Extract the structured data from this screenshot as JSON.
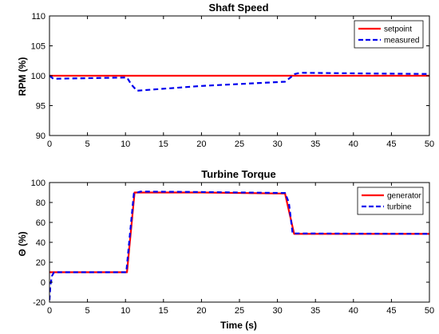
{
  "chart_data": [
    {
      "type": "line",
      "title": "Shaft Speed",
      "xlabel": "",
      "ylabel": "RPM (%)",
      "xlim": [
        0,
        50
      ],
      "ylim": [
        90,
        110
      ],
      "xticks": [
        0,
        5,
        10,
        15,
        20,
        25,
        30,
        35,
        40,
        45,
        50
      ],
      "yticks": [
        90,
        95,
        100,
        105,
        110
      ],
      "grid": false,
      "legend_position": "top-right",
      "series": [
        {
          "name": "setpoint",
          "color": "#ff0000",
          "style": "solid",
          "x": [
            0,
            50
          ],
          "y": [
            100,
            100
          ]
        },
        {
          "name": "measured",
          "color": "#0000ee",
          "style": "dashed",
          "x": [
            0,
            0.5,
            10.2,
            10.8,
            11.5,
            20,
            31,
            31.5,
            32.3,
            33,
            40,
            50
          ],
          "y": [
            100,
            99.5,
            99.7,
            98.5,
            97.5,
            98.3,
            99.0,
            99.5,
            100.3,
            100.5,
            100.4,
            100.3
          ]
        }
      ]
    },
    {
      "type": "line",
      "title": "Turbine Torque",
      "xlabel": "Time (s)",
      "ylabel": "Θ (%)",
      "xlim": [
        0,
        50
      ],
      "ylim": [
        -20,
        100
      ],
      "xticks": [
        0,
        5,
        10,
        15,
        20,
        25,
        30,
        35,
        40,
        45,
        50
      ],
      "yticks": [
        -20,
        0,
        20,
        40,
        60,
        80,
        100
      ],
      "grid": false,
      "legend_position": "top-right",
      "series": [
        {
          "name": "generator",
          "color": "#ff0000",
          "style": "solid",
          "x": [
            0,
            0.2,
            10.2,
            11.2,
            20,
            31,
            32.2,
            50
          ],
          "y": [
            10,
            10,
            10,
            90,
            90,
            89,
            48.5,
            48.5
          ]
        },
        {
          "name": "turbine",
          "color": "#0000ee",
          "style": "dashed",
          "x": [
            0,
            0.1,
            0.3,
            0.6,
            10.1,
            11.1,
            12,
            20,
            31,
            31.5,
            32,
            50
          ],
          "y": [
            -18,
            -5,
            6,
            10,
            10,
            89,
            91,
            90.5,
            89.5,
            80,
            49,
            48.5
          ]
        }
      ]
    }
  ]
}
